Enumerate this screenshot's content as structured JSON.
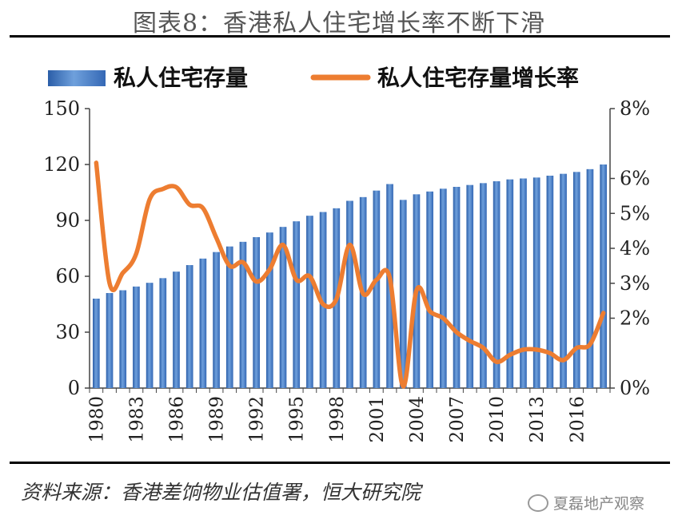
{
  "title": "图表8：香港私人住宅增长率不断下滑",
  "source": "资料来源：香港差饷物业估值署，恒大研究院",
  "watermark": "夏磊地产观察",
  "chart_data": {
    "type": "bar+line",
    "legend": [
      "私人住宅存量",
      "私人住宅存量增长率"
    ],
    "x_tick_labels": [
      "1980",
      "1983",
      "1986",
      "1989",
      "1992",
      "1995",
      "1998",
      "2001",
      "2004",
      "2007",
      "2010",
      "2013",
      "2016"
    ],
    "years": [
      1980,
      1981,
      1982,
      1983,
      1984,
      1985,
      1986,
      1987,
      1988,
      1989,
      1990,
      1991,
      1992,
      1993,
      1994,
      1995,
      1996,
      1997,
      1998,
      1999,
      2000,
      2001,
      2002,
      2003,
      2004,
      2005,
      2006,
      2007,
      2008,
      2009,
      2010,
      2011,
      2012,
      2013,
      2014,
      2015,
      2016,
      2017,
      2018
    ],
    "series": [
      {
        "name": "私人住宅存量",
        "axis": "left",
        "type": "bar",
        "color": "#4a80c8",
        "values": [
          48,
          51,
          52.5,
          54.5,
          56.5,
          59,
          62.5,
          66,
          69.5,
          73,
          76,
          78.5,
          81,
          83.5,
          86.5,
          89.5,
          92.5,
          94.5,
          96.5,
          100.5,
          102.5,
          106,
          109.5,
          101,
          104,
          105.5,
          107,
          108,
          109,
          110,
          111,
          112,
          112.5,
          113,
          114,
          115,
          116,
          117.5,
          120
        ]
      },
      {
        "name": "私人住宅存量增长率",
        "axis": "right",
        "type": "line",
        "color": "#ed7d31",
        "values": [
          6.45,
          3.0,
          3.3,
          3.85,
          5.4,
          5.7,
          5.75,
          5.25,
          5.15,
          4.3,
          3.5,
          3.6,
          3.05,
          3.4,
          4.1,
          3.1,
          3.2,
          2.4,
          2.55,
          4.1,
          2.7,
          3.1,
          3.15,
          0.05,
          2.8,
          2.2,
          2.0,
          1.6,
          1.35,
          1.15,
          0.75,
          0.95,
          1.1,
          1.1,
          1.0,
          0.8,
          1.15,
          1.25,
          2.15
        ]
      }
    ],
    "left_axis": {
      "min": 0,
      "max": 150,
      "ticks": [
        0,
        30,
        60,
        90,
        120,
        150
      ]
    },
    "right_axis": {
      "min": 0,
      "max": 8,
      "ticks": [
        "0%",
        "2%",
        "3%",
        "4%",
        "5%",
        "6%",
        "8%"
      ]
    }
  }
}
